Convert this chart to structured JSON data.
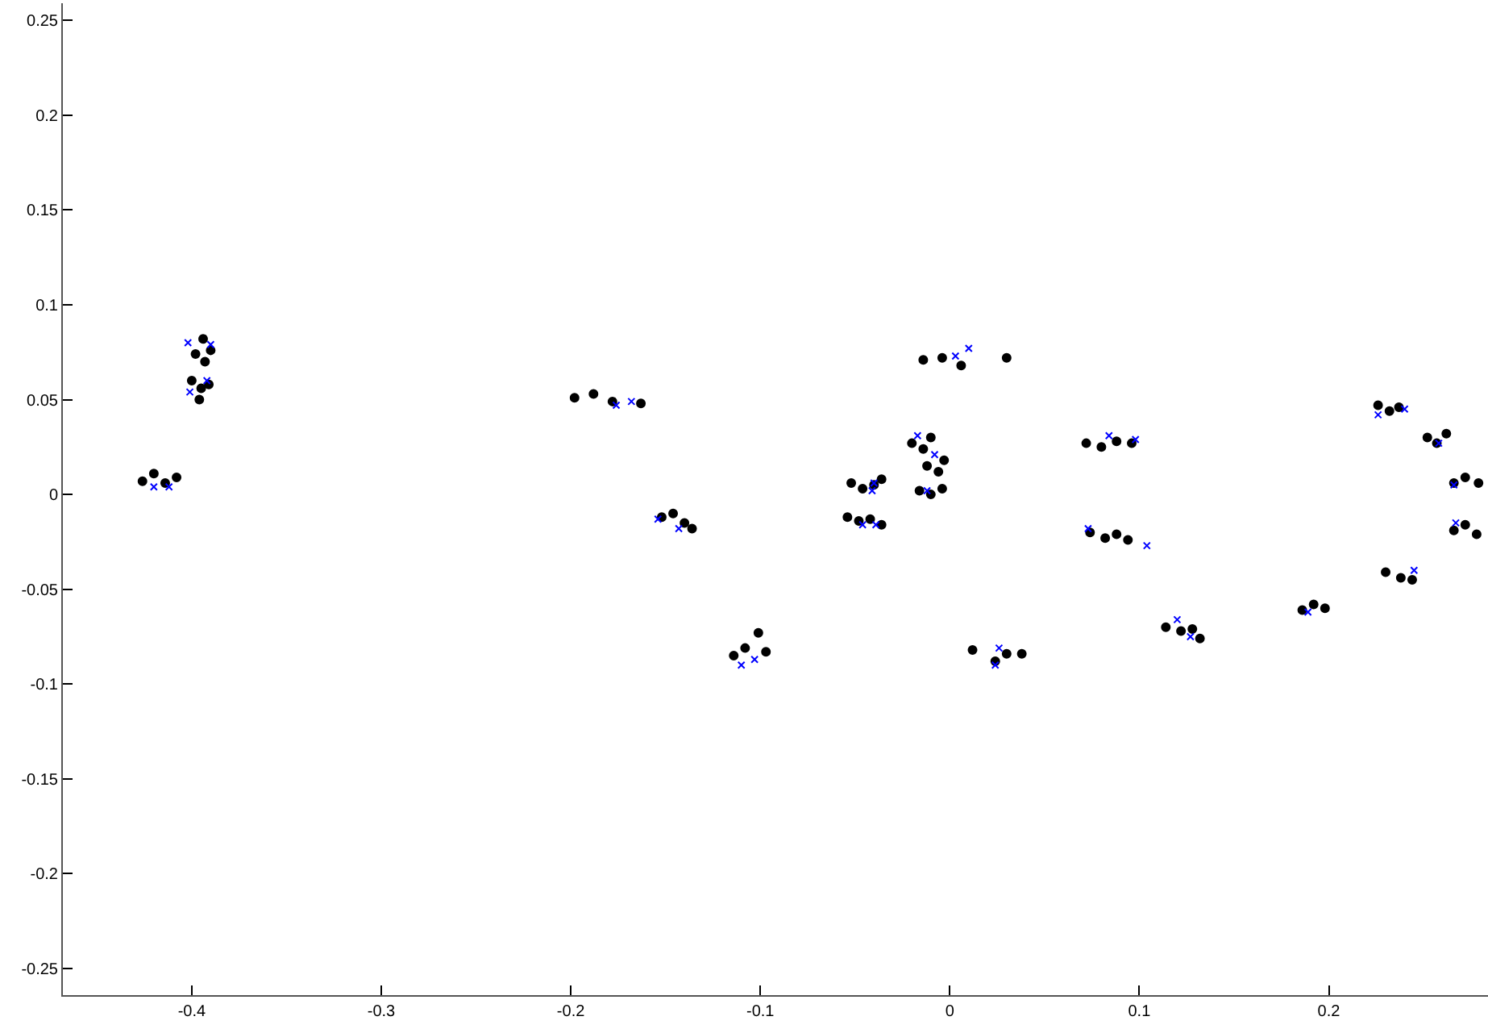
{
  "chart_data": {
    "type": "scatter",
    "xlim": [
      -0.468,
      0.284
    ],
    "ylim": [
      -0.264,
      0.259
    ],
    "xticks": [
      -0.4,
      -0.3,
      -0.2,
      -0.1,
      0,
      0.1,
      0.2
    ],
    "yticks": [
      -0.25,
      -0.2,
      -0.15,
      -0.1,
      -0.05,
      0,
      0.05,
      0.1,
      0.15,
      0.2,
      0.25
    ],
    "grid": false,
    "series": [
      {
        "color": "#000000",
        "marker": "circle",
        "x": [
          -0.426,
          -0.42,
          -0.414,
          -0.408,
          -0.398,
          -0.394,
          -0.39,
          -0.393,
          -0.4,
          -0.395,
          -0.391,
          -0.396,
          -0.198,
          -0.188,
          -0.178,
          -0.163,
          -0.152,
          -0.146,
          -0.14,
          -0.136,
          -0.114,
          -0.108,
          -0.101,
          -0.097,
          -0.052,
          -0.046,
          -0.04,
          -0.036,
          -0.054,
          -0.048,
          -0.042,
          -0.036,
          -0.02,
          -0.014,
          -0.01,
          -0.012,
          -0.006,
          -0.003,
          -0.016,
          -0.01,
          -0.004,
          -0.014,
          -0.004,
          0.006,
          0.03,
          0.012,
          0.024,
          0.03,
          0.038,
          0.072,
          0.08,
          0.088,
          0.096,
          0.074,
          0.082,
          0.088,
          0.094,
          0.114,
          0.122,
          0.128,
          0.132,
          0.186,
          0.192,
          0.198,
          0.23,
          0.238,
          0.244,
          0.226,
          0.232,
          0.237,
          0.252,
          0.257,
          0.262,
          0.266,
          0.272,
          0.279,
          0.266,
          0.272,
          0.278
        ],
        "values": [
          0.007,
          0.011,
          0.006,
          0.009,
          0.074,
          0.082,
          0.076,
          0.07,
          0.06,
          0.056,
          0.058,
          0.05,
          0.051,
          0.053,
          0.049,
          0.048,
          -0.012,
          -0.01,
          -0.015,
          -0.018,
          -0.085,
          -0.081,
          -0.073,
          -0.083,
          0.006,
          0.003,
          0.005,
          0.008,
          -0.012,
          -0.014,
          -0.013,
          -0.016,
          0.027,
          0.024,
          0.03,
          0.015,
          0.012,
          0.018,
          0.002,
          0.0,
          0.003,
          0.071,
          0.072,
          0.068,
          0.072,
          -0.082,
          -0.088,
          -0.084,
          -0.084,
          0.027,
          0.025,
          0.028,
          0.027,
          -0.02,
          -0.023,
          -0.021,
          -0.024,
          -0.07,
          -0.072,
          -0.071,
          -0.076,
          -0.061,
          -0.058,
          -0.06,
          -0.041,
          -0.044,
          -0.045,
          0.047,
          0.044,
          0.046,
          0.03,
          0.027,
          0.032,
          0.006,
          0.009,
          0.006,
          -0.019,
          -0.016,
          -0.021
        ]
      },
      {
        "color": "#0000ff",
        "marker": "cross",
        "x": [
          -0.42,
          -0.412,
          -0.402,
          -0.39,
          -0.401,
          -0.392,
          -0.176,
          -0.168,
          -0.154,
          -0.143,
          -0.11,
          -0.103,
          -0.041,
          -0.04,
          -0.046,
          -0.039,
          -0.017,
          -0.008,
          -0.012,
          0.003,
          0.01,
          0.024,
          0.026,
          0.084,
          0.098,
          0.073,
          0.104,
          0.12,
          0.127,
          0.189,
          0.245,
          0.226,
          0.24,
          0.258,
          0.266,
          0.267
        ],
        "values": [
          0.004,
          0.004,
          0.08,
          0.079,
          0.054,
          0.06,
          0.047,
          0.049,
          -0.013,
          -0.018,
          -0.09,
          -0.087,
          0.002,
          0.006,
          -0.016,
          -0.016,
          0.031,
          0.021,
          0.002,
          0.073,
          0.077,
          -0.09,
          -0.081,
          0.031,
          0.029,
          -0.018,
          -0.027,
          -0.066,
          -0.075,
          -0.062,
          -0.04,
          0.042,
          0.045,
          0.027,
          0.005,
          -0.015
        ]
      }
    ]
  }
}
